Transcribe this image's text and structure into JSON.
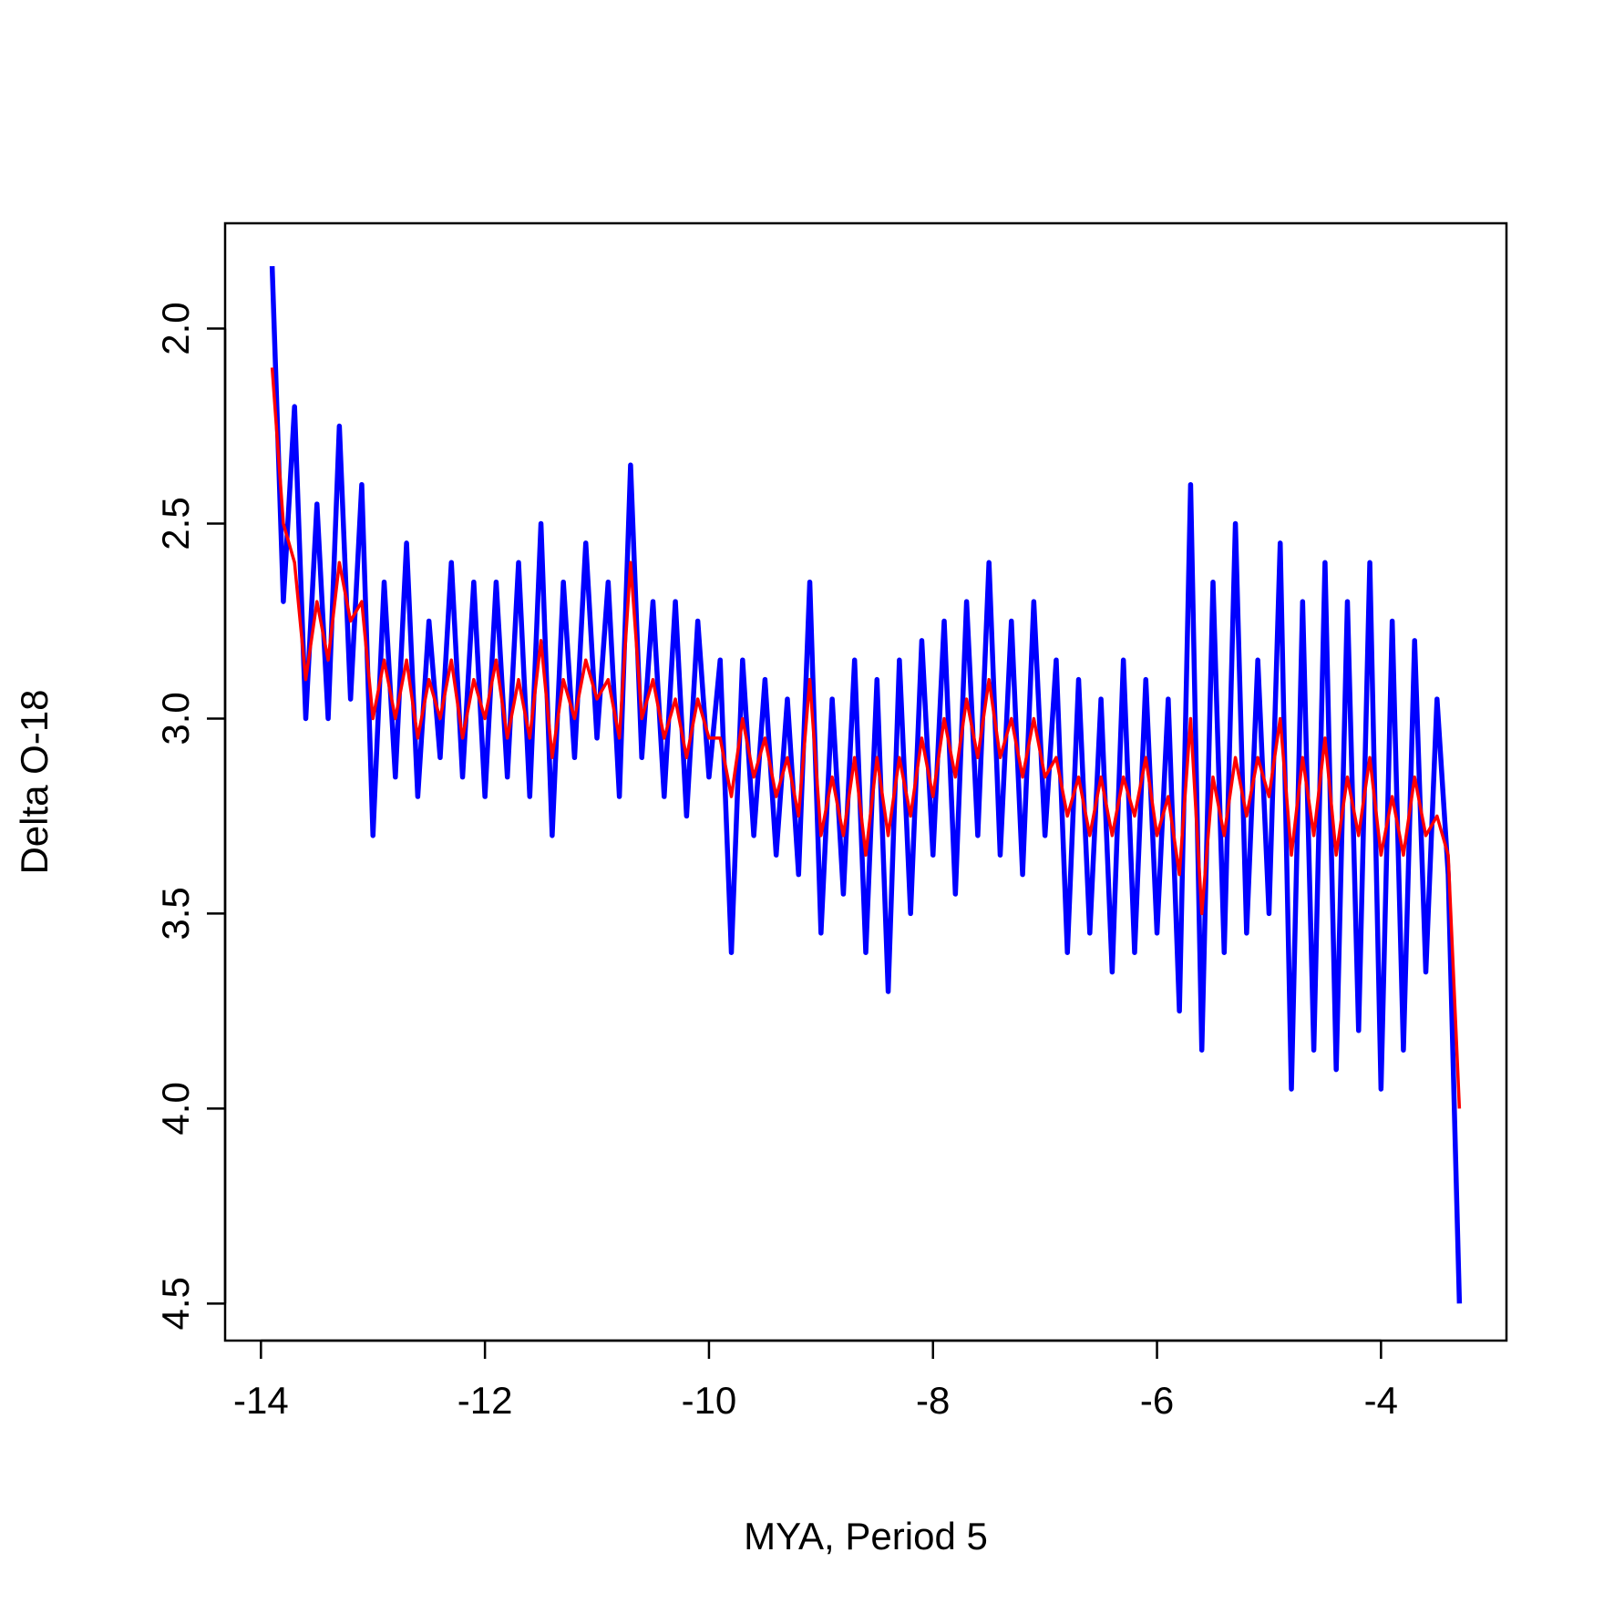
{
  "chart_data": {
    "type": "line",
    "xlabel": "MYA, Period 5",
    "ylabel": "Delta O-18",
    "x": [
      -13.9,
      -13.8,
      -13.7,
      -13.6,
      -13.5,
      -13.4,
      -13.3,
      -13.2,
      -13.1,
      -13.0,
      -12.9,
      -12.8,
      -12.7,
      -12.6,
      -12.5,
      -12.4,
      -12.3,
      -12.2,
      -12.1,
      -12.0,
      -11.9,
      -11.8,
      -11.7,
      -11.6,
      -11.5,
      -11.4,
      -11.3,
      -11.2,
      -11.1,
      -11.0,
      -10.9,
      -10.8,
      -10.7,
      -10.6,
      -10.5,
      -10.4,
      -10.3,
      -10.2,
      -10.1,
      -10.0,
      -9.9,
      -9.8,
      -9.7,
      -9.6,
      -9.5,
      -9.4,
      -9.3,
      -9.2,
      -9.1,
      -9.0,
      -8.9,
      -8.8,
      -8.7,
      -8.6,
      -8.5,
      -8.4,
      -8.3,
      -8.2,
      -8.1,
      -8.0,
      -7.9,
      -7.8,
      -7.7,
      -7.6,
      -7.5,
      -7.4,
      -7.3,
      -7.2,
      -7.1,
      -7.0,
      -6.9,
      -6.8,
      -6.7,
      -6.6,
      -6.5,
      -6.4,
      -6.3,
      -6.2,
      -6.1,
      -6.0,
      -5.9,
      -5.8,
      -5.7,
      -5.6,
      -5.5,
      -5.4,
      -5.3,
      -5.2,
      -5.1,
      -5.0,
      -4.9,
      -4.8,
      -4.7,
      -4.6,
      -4.5,
      -4.4,
      -4.3,
      -4.2,
      -4.1,
      -4.0,
      -3.9,
      -3.8,
      -3.7,
      -3.6,
      -3.5,
      -3.4,
      -3.3
    ],
    "series": [
      {
        "color": "#0000ff",
        "values": [
          1.84,
          2.7,
          2.2,
          3.0,
          2.45,
          3.0,
          2.25,
          2.95,
          2.4,
          3.3,
          2.65,
          3.15,
          2.55,
          3.2,
          2.75,
          3.1,
          2.6,
          3.15,
          2.65,
          3.2,
          2.65,
          3.15,
          2.6,
          3.2,
          2.5,
          3.3,
          2.65,
          3.1,
          2.55,
          3.05,
          2.65,
          3.2,
          2.35,
          3.1,
          2.7,
          3.2,
          2.7,
          3.25,
          2.75,
          3.15,
          2.85,
          3.6,
          2.85,
          3.3,
          2.9,
          3.35,
          2.95,
          3.4,
          2.65,
          3.55,
          2.95,
          3.45,
          2.85,
          3.6,
          2.9,
          3.7,
          2.85,
          3.5,
          2.8,
          3.35,
          2.75,
          3.45,
          2.7,
          3.3,
          2.6,
          3.35,
          2.75,
          3.4,
          2.7,
          3.3,
          2.85,
          3.6,
          2.9,
          3.55,
          2.95,
          3.65,
          2.85,
          3.6,
          2.9,
          3.55,
          2.95,
          3.75,
          2.4,
          3.85,
          2.65,
          3.6,
          2.5,
          3.55,
          2.85,
          3.5,
          2.55,
          3.95,
          2.7,
          3.85,
          2.6,
          3.9,
          2.7,
          3.8,
          2.6,
          3.95,
          2.75,
          3.85,
          2.8,
          3.65,
          2.95,
          3.4,
          4.5
        ]
      },
      {
        "color": "#ff0000",
        "values": [
          2.1,
          2.5,
          2.6,
          2.9,
          2.7,
          2.85,
          2.6,
          2.75,
          2.7,
          3.0,
          2.85,
          3.0,
          2.85,
          3.05,
          2.9,
          3.0,
          2.85,
          3.05,
          2.9,
          3.0,
          2.85,
          3.05,
          2.9,
          3.05,
          2.8,
          3.1,
          2.9,
          3.0,
          2.85,
          2.95,
          2.9,
          3.05,
          2.6,
          3.0,
          2.9,
          3.05,
          2.95,
          3.1,
          2.95,
          3.05,
          3.05,
          3.2,
          3.0,
          3.15,
          3.05,
          3.2,
          3.1,
          3.25,
          2.9,
          3.3,
          3.15,
          3.3,
          3.1,
          3.35,
          3.1,
          3.3,
          3.1,
          3.25,
          3.05,
          3.2,
          3.0,
          3.15,
          2.95,
          3.1,
          2.9,
          3.1,
          3.0,
          3.15,
          3.0,
          3.15,
          3.1,
          3.25,
          3.15,
          3.3,
          3.15,
          3.3,
          3.15,
          3.25,
          3.1,
          3.3,
          3.2,
          3.4,
          3.0,
          3.5,
          3.15,
          3.3,
          3.1,
          3.25,
          3.1,
          3.2,
          3.0,
          3.35,
          3.1,
          3.3,
          3.05,
          3.35,
          3.15,
          3.3,
          3.1,
          3.35,
          3.2,
          3.35,
          3.15,
          3.3,
          3.25,
          3.35,
          4.0
        ]
      }
    ],
    "xlim": [
      -14.32,
      -2.88
    ],
    "xticks": [
      -14,
      -12,
      -10,
      -8,
      -6,
      -4
    ],
    "ylim": [
      4.595,
      1.73
    ],
    "yticks": [
      {
        "value": 2,
        "label": "2.0"
      },
      2.5,
      {
        "value": 3,
        "label": "3.0"
      },
      3.5,
      {
        "value": 4,
        "label": "4.0"
      },
      4.5
    ]
  }
}
